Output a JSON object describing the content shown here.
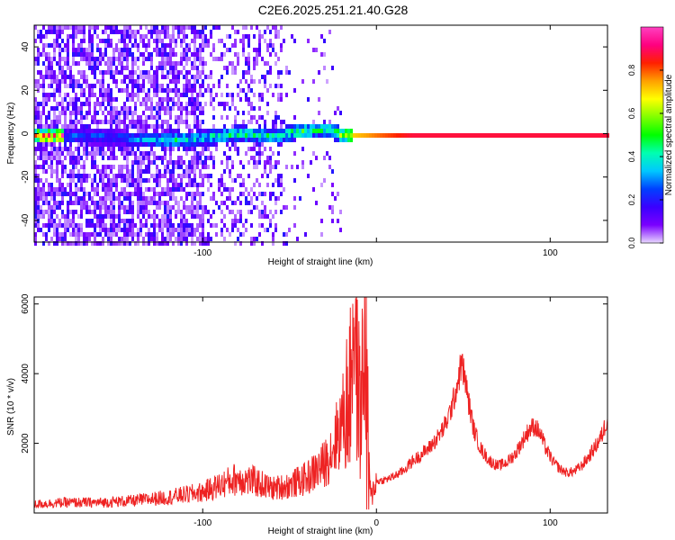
{
  "title": "C2E6.2025.251.21.40.G28",
  "chart_data": [
    {
      "type": "heatmap",
      "xlabel": "Height of straight line (km)",
      "ylabel": "Frequency (Hz)",
      "xlim": [
        -197,
        133
      ],
      "ylim": [
        -50,
        50
      ],
      "x_ticks": [
        -100,
        0,
        100
      ],
      "x_tick_labels": [
        "-100",
        "",
        "100"
      ],
      "y_ticks": [
        -40,
        -20,
        0,
        20,
        40
      ],
      "y_tick_labels": [
        "-40",
        "-20",
        "0",
        "20",
        "40"
      ],
      "colorbar": {
        "label": "Normalized spectral amplitude",
        "range": [
          0,
          1
        ],
        "ticks": [
          0.0,
          0.2,
          0.4,
          0.6,
          0.8
        ],
        "tick_labels": [
          "0.0",
          "0.2",
          "0.4",
          "0.6",
          "0.8"
        ],
        "colormap": [
          "#e8d8ff",
          "#7a00ff",
          "#3a00ff",
          "#0040ff",
          "#00c8ff",
          "#00ffb0",
          "#00ff00",
          "#80ff00",
          "#ffff00",
          "#ffa000",
          "#ff2000",
          "#ff0080",
          "#ff40c0"
        ]
      },
      "ridge": [
        {
          "x": -180,
          "f": 0,
          "amp": 0.3
        },
        {
          "x": -150,
          "f": -1,
          "amp": 0.3
        },
        {
          "x": -120,
          "f": -2,
          "amp": 0.45
        },
        {
          "x": -100,
          "f": -1,
          "amp": 0.45
        },
        {
          "x": -80,
          "f": 1,
          "amp": 0.5
        },
        {
          "x": -60,
          "f": 0,
          "amp": 0.5
        },
        {
          "x": -45,
          "f": 2,
          "amp": 0.55
        },
        {
          "x": -30,
          "f": 3,
          "amp": 0.5
        },
        {
          "x": -18,
          "f": 0,
          "amp": 0.75
        },
        {
          "x": 0,
          "f": 0,
          "amp": 0.85
        },
        {
          "x": 20,
          "f": 0,
          "amp": 0.95
        },
        {
          "x": 60,
          "f": 0,
          "amp": 0.95
        },
        {
          "x": 90,
          "f": 0,
          "amp": 0.95
        },
        {
          "x": 133,
          "f": 0,
          "amp": 0.95
        }
      ]
    },
    {
      "type": "line",
      "xlabel": "Height of straight line (km)",
      "ylabel": "SNR (10 * v/v)",
      "xlim": [
        -197,
        133
      ],
      "ylim": [
        0,
        6200
      ],
      "x_ticks": [
        -100,
        0,
        100
      ],
      "x_tick_labels": [
        "-100",
        "0",
        "100"
      ],
      "y_ticks": [
        2000,
        4000,
        6000
      ],
      "y_tick_labels": [
        "2000",
        "4000",
        "6000"
      ],
      "series": [
        {
          "color": "#ee2222",
          "x": [
            -197,
            -180,
            -160,
            -140,
            -120,
            -100,
            -90,
            -80,
            -70,
            -60,
            -50,
            -40,
            -30,
            -25,
            -20,
            -15,
            -14,
            -13,
            -12,
            -11,
            -10,
            -9,
            -8,
            -7,
            -6,
            -5,
            -4,
            -3,
            -2,
            0,
            5,
            10,
            15,
            20,
            25,
            30,
            35,
            40,
            44,
            47,
            49,
            51,
            53,
            56,
            60,
            65,
            70,
            75,
            80,
            85,
            88,
            91,
            94,
            98,
            102,
            106,
            110,
            114,
            118,
            122,
            126,
            130,
            133
          ],
          "y": [
            250,
            300,
            300,
            350,
            450,
            600,
            800,
            1000,
            900,
            700,
            800,
            1000,
            1400,
            1900,
            2600,
            3500,
            5200,
            6200,
            4700,
            3800,
            3300,
            2700,
            3900,
            4700,
            5100,
            2700,
            800,
            400,
            700,
            900,
            950,
            1050,
            1200,
            1450,
            1650,
            1850,
            2150,
            2550,
            3150,
            3800,
            4300,
            3850,
            3200,
            2400,
            1850,
            1500,
            1350,
            1450,
            1700,
            2150,
            2400,
            2500,
            2300,
            1800,
            1450,
            1250,
            1150,
            1200,
            1350,
            1600,
            1900,
            2250,
            2750
          ]
        }
      ]
    }
  ]
}
